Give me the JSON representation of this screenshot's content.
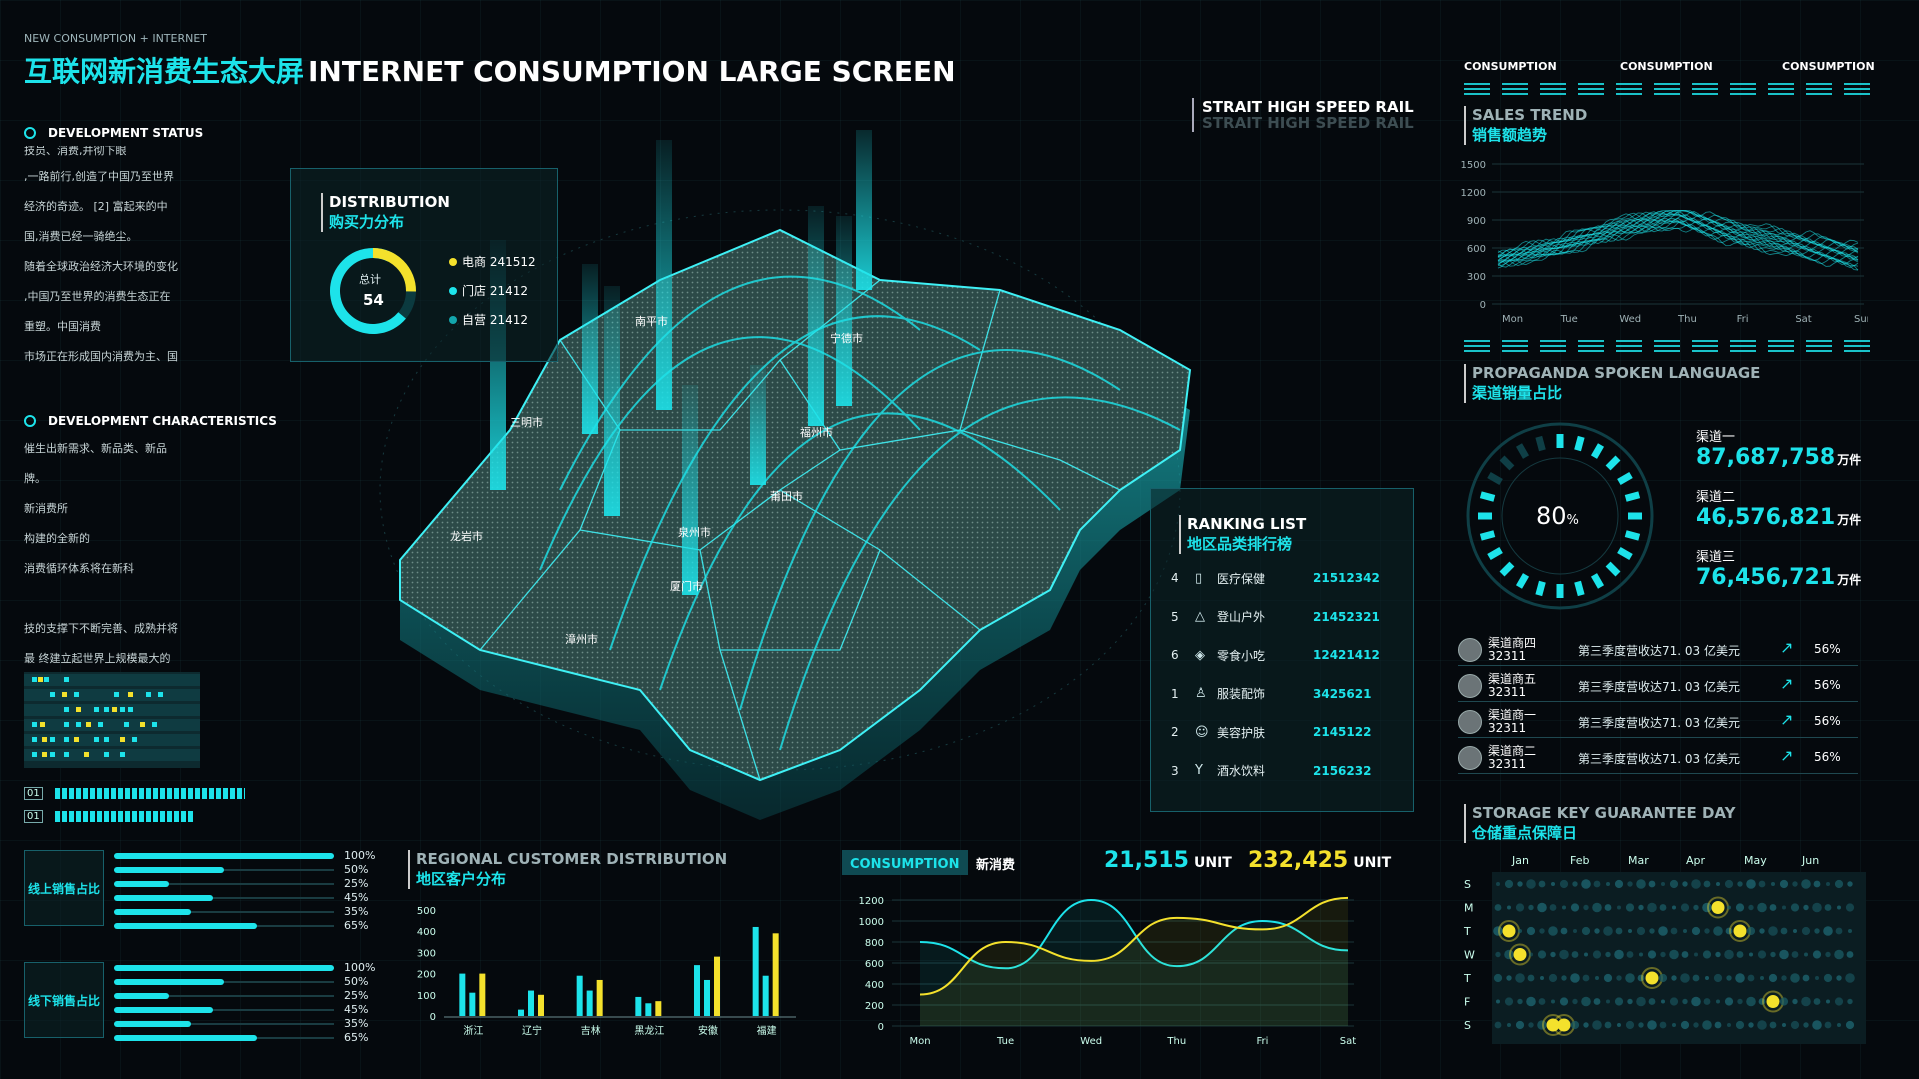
{
  "header": {
    "small": "NEW CONSUMPTION + INTERNET",
    "title_cn": "互联网新消费生态大屏",
    "title_en": "INTERNET CONSUMPTION LARGE SCREEN"
  },
  "rail": {
    "line1": "STRAIT HIGH SPEED RAIL",
    "line2": "STRAIT HIGH SPEED RAIL"
  },
  "dev_status": {
    "title": "DEVELOPMENT STATUS",
    "lines": [
      "技员、消费,并彻下眼",
      ",一路前行,创造了中国乃至世界",
      "经济的奇迹。 [2] 富起来的中",
      "国,消费已经一骑绝尘。",
      "随着全球政治经济大环境的变化",
      ",中国乃至世界的消费生态正在",
      "重塑。中国消费",
      "市场正在形成国内消费为主、国"
    ]
  },
  "dev_char": {
    "title": "DEVELOPMENT CHARACTERISTICS",
    "lines": [
      "催生出新需求、新品类、新品",
      "牌。",
      "新消费所",
      "构建的全新的",
      "消费循环体系将在新科",
      "",
      "技的支撑下不断完善、成熟并将",
      "最 终建立起世界上规模最大的"
    ]
  },
  "progress_labels": [
    "01",
    "01"
  ],
  "distribution": {
    "title_en": "DISTRIBUTION",
    "title_cn": "购买力分布",
    "total_label": "总计",
    "total_value": "54",
    "legend": [
      {
        "label": "电商 241512",
        "color": "#f4e12c"
      },
      {
        "label": "门店 21412",
        "color": "#1de3ea"
      },
      {
        "label": "自营 21412",
        "color": "#13a6ad"
      }
    ]
  },
  "map": {
    "cities": [
      "南平市",
      "宁德市",
      "三明市",
      "福州市",
      "龙岩市",
      "莆田市",
      "泉州市",
      "厦门市",
      "漳州市"
    ]
  },
  "ranking": {
    "title_en": "RANKING LIST",
    "title_cn": "地区品类排行榜",
    "rows": [
      {
        "num": "4",
        "icon": "bottle-icon",
        "glyph": "▯",
        "name": "医疗保健",
        "value": "21512342"
      },
      {
        "num": "5",
        "icon": "mountain-icon",
        "glyph": "△",
        "name": "登山户外",
        "value": "21452321"
      },
      {
        "num": "6",
        "icon": "candy-icon",
        "glyph": "◈",
        "name": "零食小吃",
        "value": "12421412"
      },
      {
        "num": "1",
        "icon": "shirt-icon",
        "glyph": "♙",
        "name": "服装配饰",
        "value": "3425621"
      },
      {
        "num": "2",
        "icon": "face-icon",
        "glyph": "☺",
        "name": "美容护肤",
        "value": "2145122"
      },
      {
        "num": "3",
        "icon": "wine-glass-icon",
        "glyph": "Y",
        "name": "酒水饮料",
        "value": "2156232"
      }
    ]
  },
  "consumption_tabs": [
    "CONSUMPTION",
    "CONSUMPTION",
    "CONSUMPTION"
  ],
  "sales_trend": {
    "title_en": "SALES TREND",
    "title_cn": "销售额趋势",
    "chart_data": {
      "type": "area",
      "x": [
        "Mon",
        "Tue",
        "Wed",
        "Thu",
        "Fri",
        "Sat",
        "Sun"
      ],
      "y_ticks": [
        0,
        300,
        600,
        900,
        1200,
        1500
      ],
      "ylim": [
        0,
        1500
      ],
      "values": [
        480,
        620,
        820,
        940,
        760,
        640,
        520
      ]
    }
  },
  "propaganda": {
    "title_en": "PROPAGANDA SPOKEN LANGUAGE",
    "title_cn": "渠道销量占比",
    "gauge_value": "80",
    "gauge_unit": "%",
    "gauge_fraction": 0.8,
    "channels": [
      {
        "label": "渠道一",
        "value": "87,687,758",
        "unit": "万件"
      },
      {
        "label": "渠道二",
        "value": "46,576,821",
        "unit": "万件"
      },
      {
        "label": "渠道三",
        "value": "76,456,721",
        "unit": "万件"
      }
    ]
  },
  "partners": [
    {
      "name": "渠道商四",
      "code": "32311",
      "desc": "第三季度营收达71. 03 亿美元",
      "pct": "56%"
    },
    {
      "name": "渠道商五",
      "code": "32311",
      "desc": "第三季度营收达71. 03 亿美元",
      "pct": "56%"
    },
    {
      "name": "渠道商一",
      "code": "32311",
      "desc": "第三季度营收达71. 03 亿美元",
      "pct": "56%"
    },
    {
      "name": "渠道商二",
      "code": "32311",
      "desc": "第三季度营收达71. 03 亿美元",
      "pct": "56%"
    }
  ],
  "storage": {
    "title_en": "STORAGE KEY GUARANTEE DAY",
    "title_cn": "仓储重点保障日",
    "months": [
      "Jan",
      "Feb",
      "Mar",
      "Apr",
      "May",
      "Jun"
    ],
    "days": [
      "S",
      "M",
      "T",
      "W",
      "T",
      "F",
      "S"
    ],
    "highlights": [
      {
        "row": 1,
        "col": 20
      },
      {
        "row": 2,
        "col": 1
      },
      {
        "row": 2,
        "col": 22
      },
      {
        "row": 3,
        "col": 2
      },
      {
        "row": 4,
        "col": 14
      },
      {
        "row": 5,
        "col": 25
      },
      {
        "row": 6,
        "col": 5
      },
      {
        "row": 6,
        "col": 6
      }
    ]
  },
  "sales_ratio": {
    "online_label": "线上销售占比",
    "offline_label": "线下销售占比",
    "online": [
      100,
      50,
      25,
      45,
      35,
      65
    ],
    "offline": [
      100,
      50,
      25,
      45,
      35,
      65
    ],
    "online_text": [
      "100%",
      "50%",
      "25%",
      "45%",
      "35%",
      "65%"
    ],
    "offline_text": [
      "100%",
      "50%",
      "25%",
      "45%",
      "35%",
      "65%"
    ]
  },
  "regional": {
    "title_en": "REGIONAL CUSTOMER DISTRIBUTION",
    "title_cn": "地区客户分布",
    "chart_data": {
      "type": "bar",
      "categories": [
        "浙江",
        "辽宁",
        "吉林",
        "黑龙江",
        "安徽",
        "福建"
      ],
      "y_ticks": [
        0,
        100,
        200,
        300,
        400,
        500
      ],
      "ylim": [
        0,
        500
      ],
      "series": [
        {
          "name": "s1",
          "values": [
            200,
            30,
            190,
            90,
            240,
            420
          ],
          "color": "#1de3ea"
        },
        {
          "name": "s2",
          "values": [
            110,
            120,
            120,
            60,
            170,
            190
          ],
          "color": "#1de3ea"
        },
        {
          "name": "s3",
          "values": [
            200,
            100,
            170,
            70,
            280,
            390
          ],
          "color": "#f4e12c"
        }
      ]
    }
  },
  "consumption_panel": {
    "tab": "CONSUMPTION",
    "label": "新消费",
    "stat1_value": "21,515",
    "stat1_unit": "UNIT",
    "stat2_value": "232,425",
    "stat2_unit": "UNIT",
    "chart_data": {
      "type": "line",
      "x": [
        "Mon",
        "Tue",
        "Wed",
        "Thu",
        "Fri",
        "Sat"
      ],
      "y_ticks": [
        0,
        200,
        400,
        600,
        800,
        1000,
        1200
      ],
      "ylim": [
        0,
        1200
      ],
      "series": [
        {
          "name": "cyan",
          "values": [
            800,
            550,
            1200,
            570,
            1000,
            720
          ],
          "color": "#1de3ea"
        },
        {
          "name": "yellow",
          "values": [
            300,
            800,
            620,
            1030,
            920,
            1220
          ],
          "color": "#f4e12c"
        }
      ]
    }
  }
}
